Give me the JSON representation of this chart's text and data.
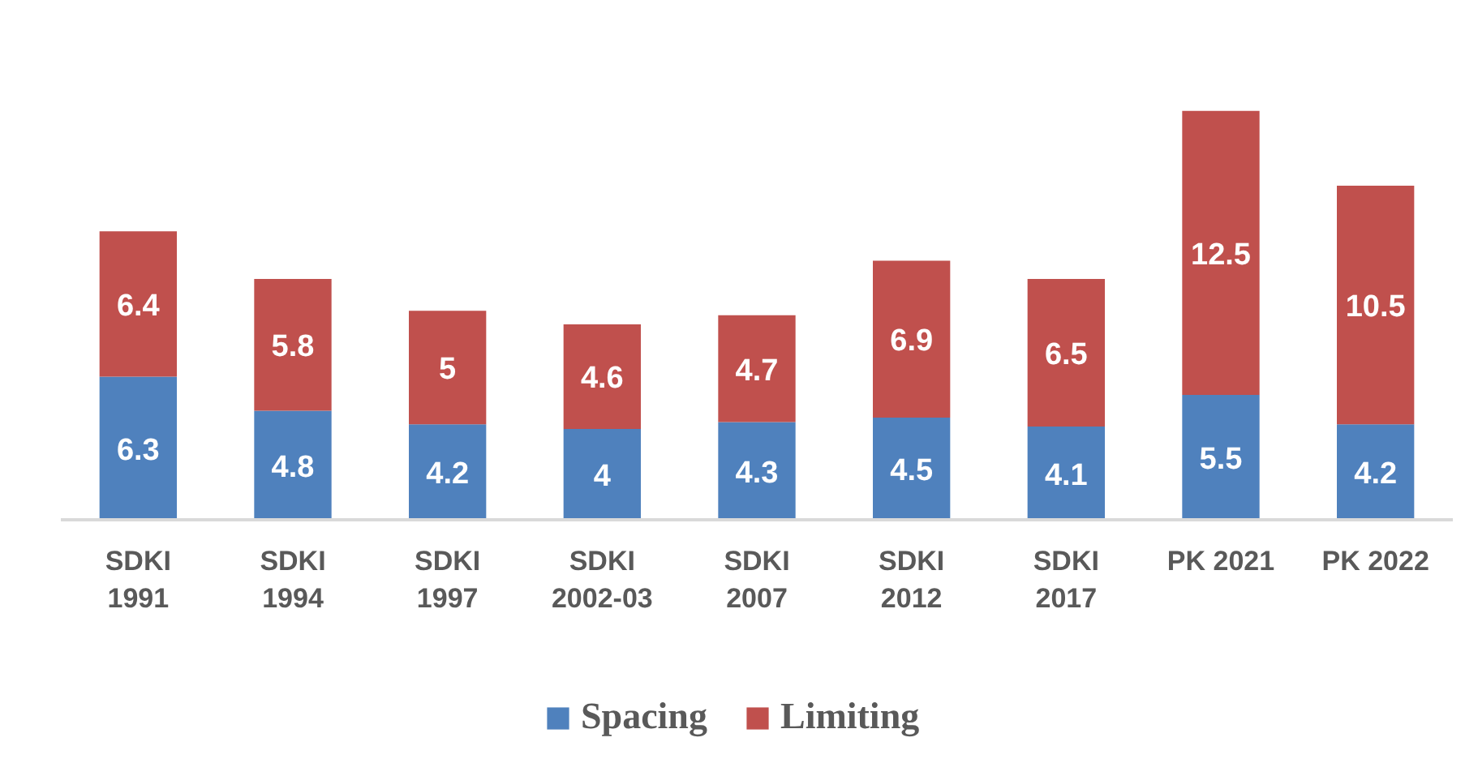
{
  "chart_data": {
    "type": "bar",
    "stacked": true,
    "categories": [
      "SDKI\n1991",
      "SDKI\n1994",
      "SDKI\n1997",
      "SDKI\n2002-03",
      "SDKI\n2007",
      "SDKI\n2012",
      "SDKI\n2017",
      "PK 2021",
      "PK 2022"
    ],
    "series": [
      {
        "name": "Spacing",
        "color": "#4f81bd",
        "values": [
          6.3,
          4.8,
          4.2,
          4,
          4.3,
          4.5,
          4.1,
          5.5,
          4.2
        ]
      },
      {
        "name": "Limiting",
        "color": "#c0504d",
        "values": [
          6.4,
          5.8,
          5,
          4.6,
          4.7,
          6.9,
          6.5,
          12.5,
          10.5
        ]
      }
    ],
    "data_labels": true,
    "legend": "bottom",
    "grid": false
  }
}
